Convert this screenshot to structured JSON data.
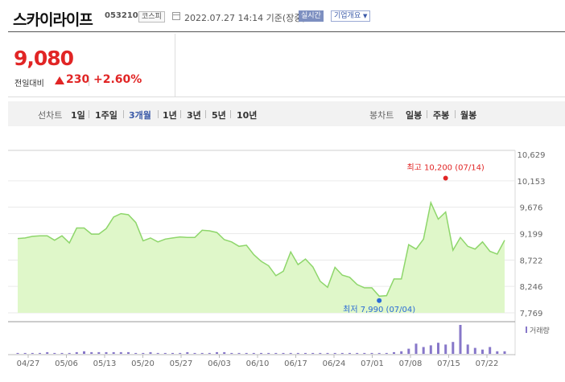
{
  "header": {
    "name": "스카이라이프",
    "code": "053210",
    "market": "코스피",
    "datetime": "2022.07.27 14:14 기준(장중)",
    "realtime_label": "실시간",
    "info_label": "기업개요"
  },
  "price": {
    "current": "9,080",
    "change_label": "전일대비",
    "change_value": "230",
    "change_pct": "+2.60%",
    "color": "#e12525"
  },
  "tabs": {
    "line_group": "선차트",
    "line_tabs": [
      "1일",
      "1주일",
      "3개월",
      "1년",
      "3년",
      "5년",
      "10년"
    ],
    "active_line_tab": "3개월",
    "candle_group": "봉차트",
    "candle_tabs": [
      "일봉",
      "주봉",
      "월봉"
    ]
  },
  "chart_data": {
    "type": "area",
    "y_ticks": [
      "10,629",
      "10,153",
      "9,676",
      "9,199",
      "8,722",
      "8,246",
      "7,769"
    ],
    "ylim": [
      7769,
      10629
    ],
    "x_ticks": [
      "04/27",
      "05/06",
      "05/13",
      "05/20",
      "05/27",
      "06/03",
      "06/10",
      "06/17",
      "06/24",
      "07/01",
      "07/08",
      "07/15",
      "07/22"
    ],
    "annotations": {
      "high": {
        "label": "최고 10,200 (07/14)",
        "value": 10200,
        "index": 58
      },
      "low": {
        "label": "최저 7,990 (07/04)",
        "value": 7990,
        "index": 49
      }
    },
    "volume_legend": "거래량",
    "series": [
      {
        "values": [
          9110,
          9120,
          9150,
          9160,
          9160,
          9080,
          9160,
          9030,
          9300,
          9300,
          9190,
          9190,
          9290,
          9500,
          9560,
          9540,
          9400,
          9070,
          9120,
          9050,
          9100,
          9120,
          9140,
          9130,
          9130,
          9260,
          9250,
          9220,
          9090,
          9050,
          8970,
          8990,
          8820,
          8700,
          8620,
          8440,
          8520,
          8870,
          8640,
          8740,
          8600,
          8340,
          8230,
          8590,
          8450,
          8410,
          8280,
          8220,
          8220,
          8070,
          8080,
          8380,
          8380,
          9000,
          8920,
          9100,
          9760,
          9460,
          9590,
          8900,
          9130,
          8970,
          8920,
          9050,
          8880,
          8830,
          9080
        ],
        "volume": [
          1,
          1,
          1,
          1,
          2,
          1,
          1,
          1,
          2,
          3,
          2,
          2,
          2,
          2,
          2,
          2,
          1,
          1,
          2,
          1,
          1,
          1,
          1,
          2,
          1,
          1,
          1,
          2,
          2,
          1,
          1,
          1,
          1,
          1,
          1,
          1,
          1,
          1,
          1,
          1,
          1,
          1,
          1,
          1,
          1,
          1,
          1,
          1,
          1,
          1,
          1,
          2,
          3,
          6,
          12,
          8,
          10,
          13,
          11,
          14,
          34,
          11,
          7,
          5,
          8,
          3,
          3
        ]
      }
    ]
  }
}
